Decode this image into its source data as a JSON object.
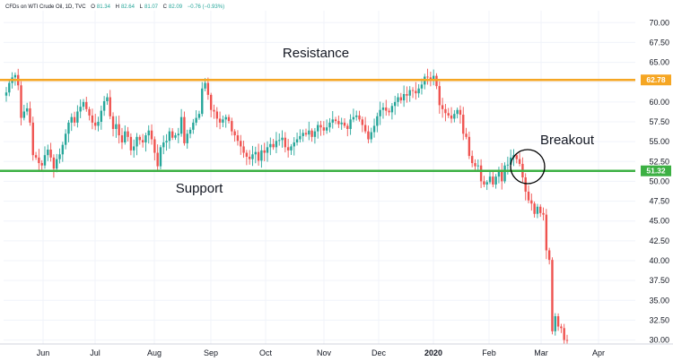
{
  "header": {
    "title": "CFDs on WTI Crude Oil, 1D, TVC",
    "o_label": "O",
    "o_value": "81.34",
    "h_label": "H",
    "h_value": "82.64",
    "l_label": "L",
    "l_value": "81.07",
    "c_label": "C",
    "c_value": "82.09",
    "change": "−0.76 (−0.93%)"
  },
  "chart_data": {
    "type": "candlestick",
    "x_labels": [
      "Jun",
      "Jul",
      "Aug",
      "Sep",
      "Oct",
      "Nov",
      "Dec",
      "2020",
      "Feb",
      "Mar",
      "Apr"
    ],
    "y_ticks": [
      "70.00",
      "67.50",
      "65.00",
      "62.50",
      "60.00",
      "57.50",
      "55.00",
      "52.50",
      "50.00",
      "47.50",
      "45.00",
      "42.50",
      "40.00",
      "37.50",
      "35.00",
      "32.50",
      "30.00"
    ],
    "ylim": [
      29.5,
      71.5
    ],
    "resistance": {
      "value": 62.78,
      "label": "62.78",
      "color": "#f5a623"
    },
    "support": {
      "value": 51.32,
      "label": "51.32",
      "color": "#3cb043"
    },
    "annotations": [
      {
        "text": "Resistance",
        "anchor": "above-resistance"
      },
      {
        "text": "Support",
        "anchor": "below-support"
      },
      {
        "text": "Breakout",
        "anchor": "breakout-circle"
      }
    ],
    "up_color": "#26a69a",
    "down_color": "#ef5350",
    "closes": [
      61.2,
      62.4,
      63.1,
      63.4,
      62.1,
      58.0,
      58.8,
      59.2,
      57.4,
      53.3,
      53.0,
      52.3,
      52.0,
      53.3,
      54.0,
      53.0,
      51.6,
      52.8,
      53.4,
      54.6,
      56.0,
      57.4,
      58.1,
      57.4,
      58.8,
      59.4,
      60.0,
      59.1,
      58.3,
      57.4,
      57.0,
      57.5,
      58.9,
      60.1,
      60.6,
      58.2,
      56.6,
      57.2,
      55.8,
      54.9,
      56.3,
      55.6,
      53.9,
      54.4,
      55.6,
      55.2,
      54.9,
      55.8,
      56.4,
      55.3,
      53.6,
      51.9,
      54.3,
      54.9,
      55.1,
      56.3,
      55.5,
      55.8,
      56.0,
      58.1,
      54.8,
      56.0,
      56.5,
      57.4,
      58.0,
      58.5,
      61.7,
      62.4,
      60.9,
      59.0,
      58.8,
      57.9,
      57.4,
      57.8,
      58.1,
      57.6,
      56.3,
      55.8,
      55.1,
      54.4,
      53.6,
      53.1,
      52.8,
      53.4,
      53.7,
      52.6,
      53.9,
      53.6,
      54.3,
      54.7,
      54.3,
      55.1,
      55.2,
      55.5,
      54.3,
      53.9,
      54.4,
      54.9,
      55.3,
      55.7,
      56.1,
      55.9,
      56.4,
      55.6,
      56.3,
      57.1,
      56.8,
      56.4,
      56.8,
      57.4,
      57.8,
      57.6,
      57.2,
      57.4,
      57.0,
      56.6,
      57.8,
      58.1,
      58.3,
      57.8,
      57.1,
      56.3,
      55.3,
      56.2,
      57.0,
      58.2,
      59.0,
      59.3,
      58.9,
      58.7,
      59.5,
      60.0,
      60.6,
      60.2,
      61.0,
      60.8,
      61.5,
      61.4,
      61.1,
      61.7,
      62.2,
      63.2,
      63.1,
      62.7,
      63.3,
      62.0,
      59.6,
      59.1,
      58.6,
      58.3,
      57.9,
      58.5,
      59.0,
      58.4,
      56.0,
      55.6,
      53.2,
      52.3,
      51.9,
      52.0,
      50.0,
      49.6,
      49.9,
      50.6,
      49.6,
      50.6,
      51.2,
      50.0,
      52.0,
      52.1,
      53.0,
      53.3,
      52.8,
      52.2,
      50.5,
      48.7,
      47.6,
      47.2,
      45.9,
      46.8,
      46.0,
      45.8,
      41.3,
      40.1,
      31.1,
      33.0,
      31.7,
      31.5,
      30.0,
      29.9
    ]
  }
}
